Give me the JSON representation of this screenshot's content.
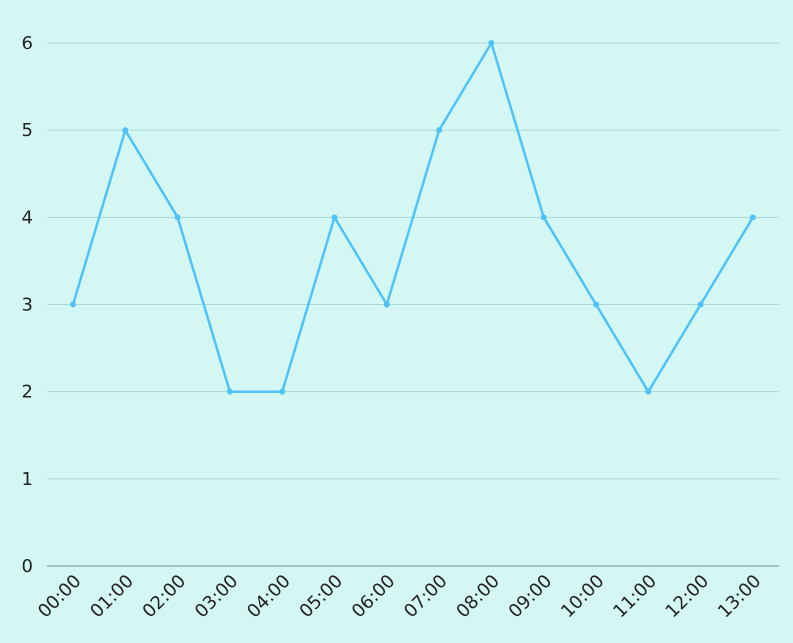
{
  "chart_data": {
    "type": "line",
    "title": "",
    "xlabel": "",
    "ylabel": "",
    "categories": [
      "00:00",
      "01:00",
      "02:00",
      "03:00",
      "04:00",
      "05:00",
      "06:00",
      "07:00",
      "08:00",
      "09:00",
      "10:00",
      "11:00",
      "12:00",
      "13:00"
    ],
    "series": [
      {
        "values": [
          3,
          5,
          4,
          2,
          2,
          4,
          3,
          5,
          6,
          4,
          3,
          2,
          3,
          4
        ]
      }
    ],
    "ylim": [
      0,
      6
    ],
    "y_ticks": [
      "0",
      "1",
      "2",
      "3",
      "4",
      "5",
      "6"
    ],
    "grid": true,
    "legend": "none",
    "colors": {
      "background": "#d5f7f4",
      "line": "#4fc3f7",
      "grid": "#a9d9d5",
      "axis": "#7fa8a4",
      "text": "#222222"
    }
  }
}
